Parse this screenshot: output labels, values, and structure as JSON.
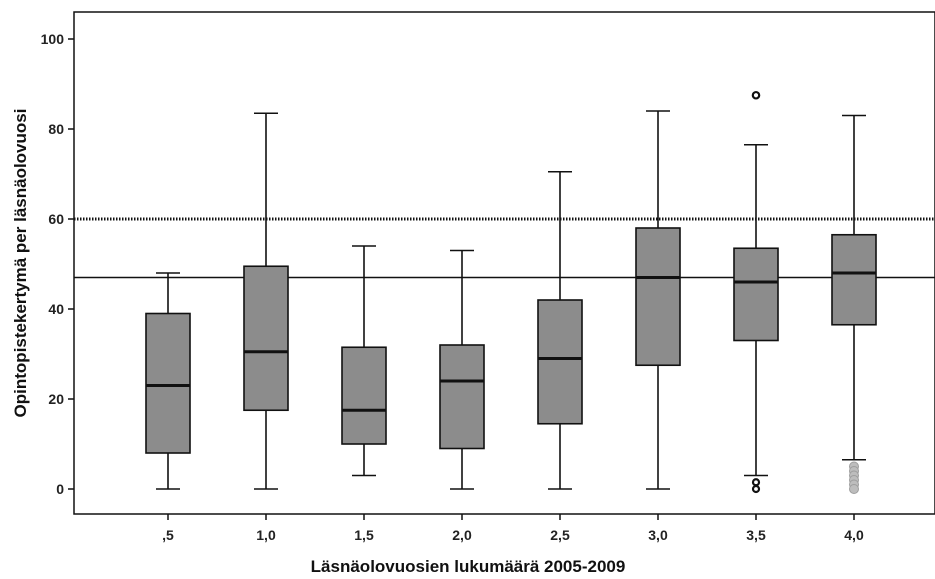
{
  "chart_data": {
    "type": "boxplot",
    "title": "",
    "xlabel": "Läsnäolovuosien lukumäärä 2005-2009",
    "ylabel": "Opintopistekertymä per läsnäolovuosi",
    "ylim": [
      -5,
      106
    ],
    "yticks": [
      0,
      20,
      40,
      60,
      80,
      100
    ],
    "categories": [
      ",5",
      "1,0",
      "1,5",
      "2,0",
      "2,5",
      "3,0",
      "3,5",
      "4,0"
    ],
    "boxes": [
      {
        "category": ",5",
        "whisker_low": 0,
        "q1": 8,
        "median": 23,
        "q3": 39,
        "whisker_high": 48
      },
      {
        "category": "1,0",
        "whisker_low": 0,
        "q1": 17.5,
        "median": 30.5,
        "q3": 49.5,
        "whisker_high": 83.5
      },
      {
        "category": "1,5",
        "whisker_low": 3,
        "q1": 10,
        "median": 17.5,
        "q3": 31.5,
        "whisker_high": 54
      },
      {
        "category": "2,0",
        "whisker_low": 0,
        "q1": 9,
        "median": 24,
        "q3": 32,
        "whisker_high": 53
      },
      {
        "category": "2,5",
        "whisker_low": 0,
        "q1": 14.5,
        "median": 29,
        "q3": 42,
        "whisker_high": 70.5
      },
      {
        "category": "3,0",
        "whisker_low": 0,
        "q1": 27.5,
        "median": 47,
        "q3": 58,
        "whisker_high": 84
      },
      {
        "category": "3,5",
        "whisker_low": 3,
        "q1": 33,
        "median": 46,
        "q3": 53.5,
        "whisker_high": 76.5,
        "outliers": [
          87.5,
          1.5,
          0
        ]
      },
      {
        "category": "4,0",
        "whisker_low": 6.5,
        "q1": 36.5,
        "median": 48,
        "q3": 56.5,
        "whisker_high": 83,
        "outliers": [
          5,
          4,
          3,
          2,
          1,
          0
        ]
      }
    ],
    "reference_lines": [
      {
        "y": 60,
        "style": "dotted"
      },
      {
        "y": 47,
        "style": "solid"
      }
    ],
    "colors": {
      "box_fill": "#8c8c8c",
      "line": "#111111",
      "outlier_far": "#111111",
      "outlier_near": "#bdbdbd"
    },
    "grid": false
  }
}
